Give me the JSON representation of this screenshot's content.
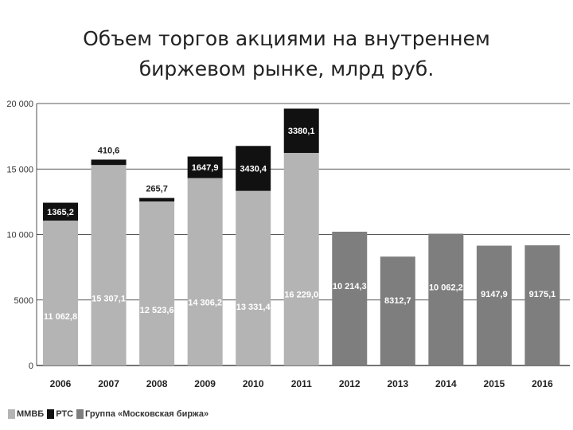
{
  "title": {
    "line1": "Объем торгов акциями на внутреннем",
    "line2": "биржевом рынке, млрд руб."
  },
  "colors": {
    "mmvb": "#b4b4b4",
    "rts": "#111111",
    "moex": "#7e7e7e",
    "grid": "#222222"
  },
  "legend": [
    {
      "label": "ММВБ",
      "color_key": "mmvb"
    },
    {
      "label": "РТС",
      "color_key": "rts"
    },
    {
      "label": "Группа «Московская биржа»",
      "color_key": "moex"
    }
  ],
  "chart_data": {
    "type": "bar",
    "stacked": true,
    "categories": [
      "2006",
      "2007",
      "2008",
      "2009",
      "2010",
      "2011",
      "2012",
      "2013",
      "2014",
      "2015",
      "2016"
    ],
    "y_ticks": [
      {
        "value": 0,
        "label": "0"
      },
      {
        "value": 5000,
        "label": "5000"
      },
      {
        "value": 10000,
        "label": "10 000"
      },
      {
        "value": 15000,
        "label": "15 000"
      },
      {
        "value": 20000,
        "label": "20 000"
      }
    ],
    "ylim": [
      0,
      20000
    ],
    "grid": true,
    "legend_position": "bottom-left",
    "series": [
      {
        "name": "ММВБ",
        "color_key": "mmvb",
        "values": [
          11062.8,
          15307.1,
          12523.6,
          14306.2,
          13331.4,
          16229.0,
          null,
          null,
          null,
          null,
          null
        ],
        "labels": [
          "11 062,8",
          "15 307,1",
          "12 523,6",
          "14 306,2",
          "13 331,4",
          "16 229,0",
          null,
          null,
          null,
          null,
          null
        ]
      },
      {
        "name": "РТС",
        "color_key": "rts",
        "values": [
          1365.2,
          410.6,
          265.7,
          1647.9,
          3430.4,
          3380.1,
          null,
          null,
          null,
          null,
          null
        ],
        "labels": [
          "1365,2",
          "410,6",
          "265,7",
          "1647,9",
          "3430,4",
          "3380,1",
          null,
          null,
          null,
          null,
          null
        ]
      },
      {
        "name": "Группа «Московская биржа»",
        "color_key": "moex",
        "values": [
          null,
          null,
          null,
          null,
          null,
          null,
          10214.3,
          8312.7,
          10062.2,
          9147.9,
          9175.1
        ],
        "labels": [
          null,
          null,
          null,
          null,
          null,
          null,
          "10 214,3",
          "8312,7",
          "10 062,2",
          "9147,9",
          "9175,1"
        ]
      }
    ]
  }
}
